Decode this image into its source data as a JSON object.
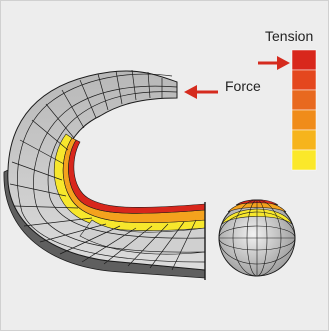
{
  "labels": {
    "force": "Force",
    "tension": "Tension"
  },
  "legend": {
    "colors": [
      "#d8271c",
      "#e4471e",
      "#e8691f",
      "#f08c1a",
      "#f6b41c",
      "#fbe82a"
    ]
  },
  "colors": {
    "background": "#ededed",
    "arrow": "#d52b1e",
    "mesh": "#1b1b1b",
    "tube_light": "#d6d6d6",
    "tube_dark": "#6e6e6e",
    "stress_yellow": "#f7e72c",
    "stress_orange": "#f4a21d",
    "stress_red": "#d8271c"
  },
  "icons": [
    "left-arrow-icon"
  ]
}
